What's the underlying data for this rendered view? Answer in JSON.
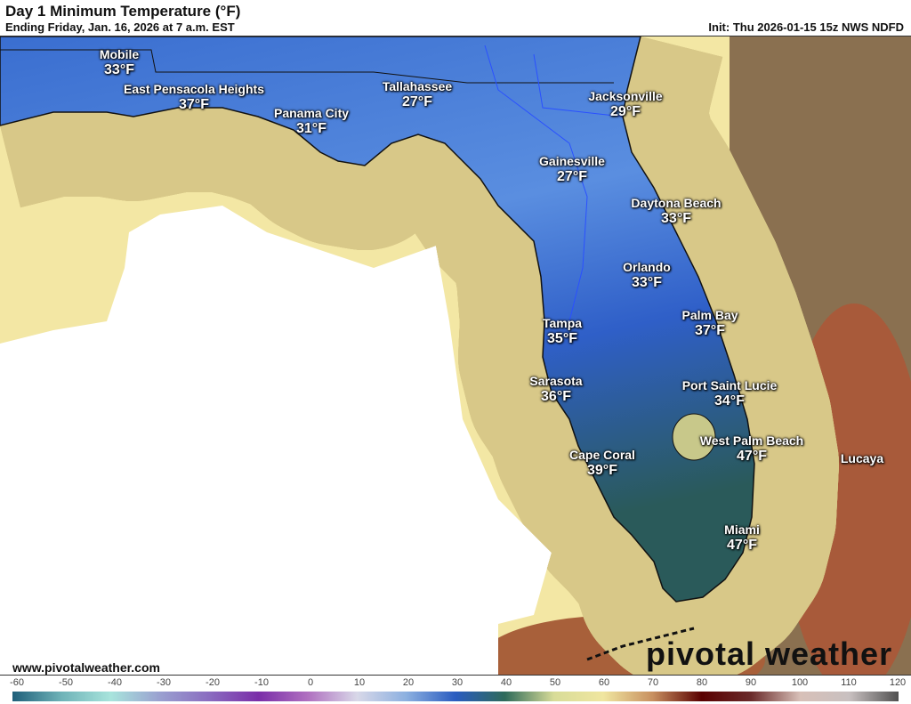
{
  "header": {
    "title": "Day 1 Minimum Temperature (°F)",
    "subtitle": "Ending Friday, Jan. 16, 2026 at 7 a.m. EST",
    "init": "Init: Thu 2026-01-15 15z NWS NDFD"
  },
  "cities": [
    {
      "name": "Mobile",
      "temp": "33°F"
    },
    {
      "name": "East Pensacola Heights",
      "temp": "37°F"
    },
    {
      "name": "Panama City",
      "temp": "31°F"
    },
    {
      "name": "Tallahassee",
      "temp": "27°F"
    },
    {
      "name": "Jacksonville",
      "temp": "29°F"
    },
    {
      "name": "Gainesville",
      "temp": "27°F"
    },
    {
      "name": "Daytona Beach",
      "temp": "33°F"
    },
    {
      "name": "Orlando",
      "temp": "33°F"
    },
    {
      "name": "Palm Bay",
      "temp": "37°F"
    },
    {
      "name": "Tampa",
      "temp": "35°F"
    },
    {
      "name": "Sarasota",
      "temp": "36°F"
    },
    {
      "name": "Port Saint Lucie",
      "temp": "34°F"
    },
    {
      "name": "West Palm Beach",
      "temp": "47°F"
    },
    {
      "name": "Cape Coral",
      "temp": "39°F"
    },
    {
      "name": "Miami",
      "temp": "47°F"
    },
    {
      "name": "Lucaya",
      "temp": ""
    }
  ],
  "footer": {
    "url": "www.pivotalweather.com",
    "logo": "pivotal weather"
  },
  "colorbar": {
    "unit": "°F",
    "ticks": [
      "-60",
      "-50",
      "-40",
      "-30",
      "-20",
      "-10",
      "0",
      "10",
      "20",
      "30",
      "40",
      "50",
      "60",
      "70",
      "80",
      "90",
      "100",
      "110",
      "120"
    ],
    "colors": [
      "#1f5f7a",
      "#6fb3b8",
      "#a8e4dc",
      "#9aa0d0",
      "#8a6cc0",
      "#7a2ea8",
      "#b070c0",
      "#d8d8e8",
      "#8cb0e0",
      "#2a5cc0",
      "#2e6a5a",
      "#d8dc98",
      "#f0e6a0",
      "#c89060",
      "#5a0000",
      "#6a2a2a",
      "#d8c0b8",
      "#c8c0c0",
      "#505050"
    ]
  }
}
